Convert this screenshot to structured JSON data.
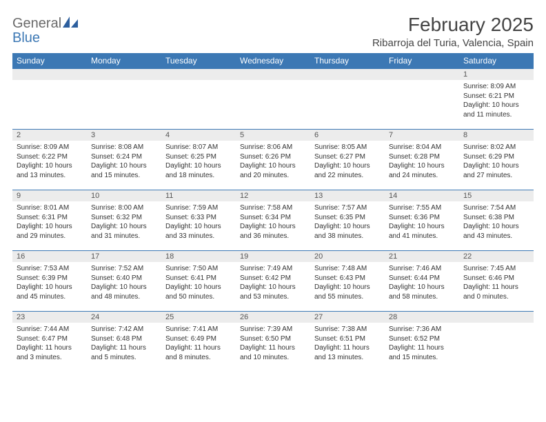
{
  "brand": {
    "general": "General",
    "blue": "Blue",
    "icon_color": "#2d5f9e"
  },
  "title": "February 2025",
  "location": "Ribarroja del Turia, Valencia, Spain",
  "header_bg": "#3c78b4",
  "header_fg": "#ffffff",
  "daynum_bg": "#ececec",
  "border_color": "#3c78b4",
  "day_headers": [
    "Sunday",
    "Monday",
    "Tuesday",
    "Wednesday",
    "Thursday",
    "Friday",
    "Saturday"
  ],
  "weeks": [
    [
      {
        "n": "",
        "lines": []
      },
      {
        "n": "",
        "lines": []
      },
      {
        "n": "",
        "lines": []
      },
      {
        "n": "",
        "lines": []
      },
      {
        "n": "",
        "lines": []
      },
      {
        "n": "",
        "lines": []
      },
      {
        "n": "1",
        "lines": [
          "Sunrise: 8:09 AM",
          "Sunset: 6:21 PM",
          "Daylight: 10 hours and 11 minutes."
        ]
      }
    ],
    [
      {
        "n": "2",
        "lines": [
          "Sunrise: 8:09 AM",
          "Sunset: 6:22 PM",
          "Daylight: 10 hours and 13 minutes."
        ]
      },
      {
        "n": "3",
        "lines": [
          "Sunrise: 8:08 AM",
          "Sunset: 6:24 PM",
          "Daylight: 10 hours and 15 minutes."
        ]
      },
      {
        "n": "4",
        "lines": [
          "Sunrise: 8:07 AM",
          "Sunset: 6:25 PM",
          "Daylight: 10 hours and 18 minutes."
        ]
      },
      {
        "n": "5",
        "lines": [
          "Sunrise: 8:06 AM",
          "Sunset: 6:26 PM",
          "Daylight: 10 hours and 20 minutes."
        ]
      },
      {
        "n": "6",
        "lines": [
          "Sunrise: 8:05 AM",
          "Sunset: 6:27 PM",
          "Daylight: 10 hours and 22 minutes."
        ]
      },
      {
        "n": "7",
        "lines": [
          "Sunrise: 8:04 AM",
          "Sunset: 6:28 PM",
          "Daylight: 10 hours and 24 minutes."
        ]
      },
      {
        "n": "8",
        "lines": [
          "Sunrise: 8:02 AM",
          "Sunset: 6:29 PM",
          "Daylight: 10 hours and 27 minutes."
        ]
      }
    ],
    [
      {
        "n": "9",
        "lines": [
          "Sunrise: 8:01 AM",
          "Sunset: 6:31 PM",
          "Daylight: 10 hours and 29 minutes."
        ]
      },
      {
        "n": "10",
        "lines": [
          "Sunrise: 8:00 AM",
          "Sunset: 6:32 PM",
          "Daylight: 10 hours and 31 minutes."
        ]
      },
      {
        "n": "11",
        "lines": [
          "Sunrise: 7:59 AM",
          "Sunset: 6:33 PM",
          "Daylight: 10 hours and 33 minutes."
        ]
      },
      {
        "n": "12",
        "lines": [
          "Sunrise: 7:58 AM",
          "Sunset: 6:34 PM",
          "Daylight: 10 hours and 36 minutes."
        ]
      },
      {
        "n": "13",
        "lines": [
          "Sunrise: 7:57 AM",
          "Sunset: 6:35 PM",
          "Daylight: 10 hours and 38 minutes."
        ]
      },
      {
        "n": "14",
        "lines": [
          "Sunrise: 7:55 AM",
          "Sunset: 6:36 PM",
          "Daylight: 10 hours and 41 minutes."
        ]
      },
      {
        "n": "15",
        "lines": [
          "Sunrise: 7:54 AM",
          "Sunset: 6:38 PM",
          "Daylight: 10 hours and 43 minutes."
        ]
      }
    ],
    [
      {
        "n": "16",
        "lines": [
          "Sunrise: 7:53 AM",
          "Sunset: 6:39 PM",
          "Daylight: 10 hours and 45 minutes."
        ]
      },
      {
        "n": "17",
        "lines": [
          "Sunrise: 7:52 AM",
          "Sunset: 6:40 PM",
          "Daylight: 10 hours and 48 minutes."
        ]
      },
      {
        "n": "18",
        "lines": [
          "Sunrise: 7:50 AM",
          "Sunset: 6:41 PM",
          "Daylight: 10 hours and 50 minutes."
        ]
      },
      {
        "n": "19",
        "lines": [
          "Sunrise: 7:49 AM",
          "Sunset: 6:42 PM",
          "Daylight: 10 hours and 53 minutes."
        ]
      },
      {
        "n": "20",
        "lines": [
          "Sunrise: 7:48 AM",
          "Sunset: 6:43 PM",
          "Daylight: 10 hours and 55 minutes."
        ]
      },
      {
        "n": "21",
        "lines": [
          "Sunrise: 7:46 AM",
          "Sunset: 6:44 PM",
          "Daylight: 10 hours and 58 minutes."
        ]
      },
      {
        "n": "22",
        "lines": [
          "Sunrise: 7:45 AM",
          "Sunset: 6:46 PM",
          "Daylight: 11 hours and 0 minutes."
        ]
      }
    ],
    [
      {
        "n": "23",
        "lines": [
          "Sunrise: 7:44 AM",
          "Sunset: 6:47 PM",
          "Daylight: 11 hours and 3 minutes."
        ]
      },
      {
        "n": "24",
        "lines": [
          "Sunrise: 7:42 AM",
          "Sunset: 6:48 PM",
          "Daylight: 11 hours and 5 minutes."
        ]
      },
      {
        "n": "25",
        "lines": [
          "Sunrise: 7:41 AM",
          "Sunset: 6:49 PM",
          "Daylight: 11 hours and 8 minutes."
        ]
      },
      {
        "n": "26",
        "lines": [
          "Sunrise: 7:39 AM",
          "Sunset: 6:50 PM",
          "Daylight: 11 hours and 10 minutes."
        ]
      },
      {
        "n": "27",
        "lines": [
          "Sunrise: 7:38 AM",
          "Sunset: 6:51 PM",
          "Daylight: 11 hours and 13 minutes."
        ]
      },
      {
        "n": "28",
        "lines": [
          "Sunrise: 7:36 AM",
          "Sunset: 6:52 PM",
          "Daylight: 11 hours and 15 minutes."
        ]
      },
      {
        "n": "",
        "lines": []
      }
    ]
  ]
}
